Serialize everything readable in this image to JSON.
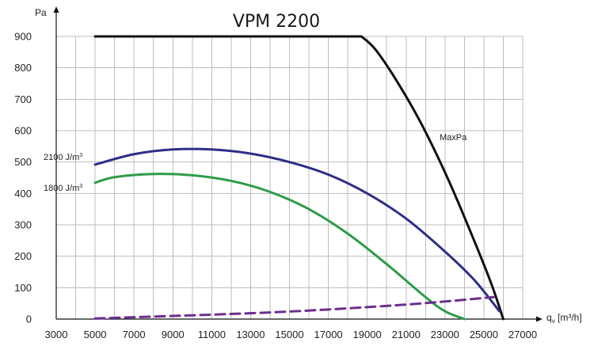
{
  "chart_data": {
    "type": "line",
    "title": "VPM 2200",
    "ylabel": "Pa",
    "xlabel_main": "q",
    "xlabel_sub": "v",
    "xlabel_units": "[m³/h]",
    "xlim": [
      3000,
      27000
    ],
    "ylim": [
      0,
      900
    ],
    "x_ticks": [
      3000,
      5000,
      7000,
      9000,
      11000,
      13000,
      15000,
      17000,
      19000,
      21000,
      23000,
      25000,
      27000
    ],
    "y_ticks": [
      0,
      100,
      200,
      300,
      400,
      500,
      600,
      700,
      800,
      900
    ],
    "grid": true,
    "series": [
      {
        "name": "MaxPa",
        "color": "#111111",
        "dash": false,
        "x": [
          5000,
          18700,
          19400,
          20500,
          21800,
          23200,
          24500,
          25400,
          26000
        ],
        "y": [
          900,
          900,
          860,
          760,
          620,
          440,
          250,
          110,
          0
        ]
      },
      {
        "name": "2100 J/m³",
        "color": "#2e2e86",
        "dash": false,
        "x": [
          5000,
          7000,
          9000,
          11000,
          13000,
          15000,
          17000,
          19000,
          21000,
          23000,
          24500,
          25800
        ],
        "y": [
          492,
          525,
          540,
          540,
          527,
          500,
          460,
          400,
          320,
          215,
          125,
          25
        ]
      },
      {
        "name": "1800 J/m³",
        "color": "#2e9b48",
        "dash": false,
        "x": [
          5000,
          6000,
          8000,
          10000,
          12000,
          14000,
          16000,
          18000,
          20000,
          22000,
          23000,
          24000
        ],
        "y": [
          434,
          452,
          462,
          458,
          440,
          405,
          350,
          272,
          175,
          70,
          25,
          0
        ]
      },
      {
        "name": "",
        "color": "#6a2f8e",
        "dash": true,
        "x": [
          5000,
          10000,
          15000,
          20000,
          23000,
          25500
        ],
        "y": [
          2,
          12,
          24,
          42,
          56,
          70
        ]
      }
    ]
  }
}
